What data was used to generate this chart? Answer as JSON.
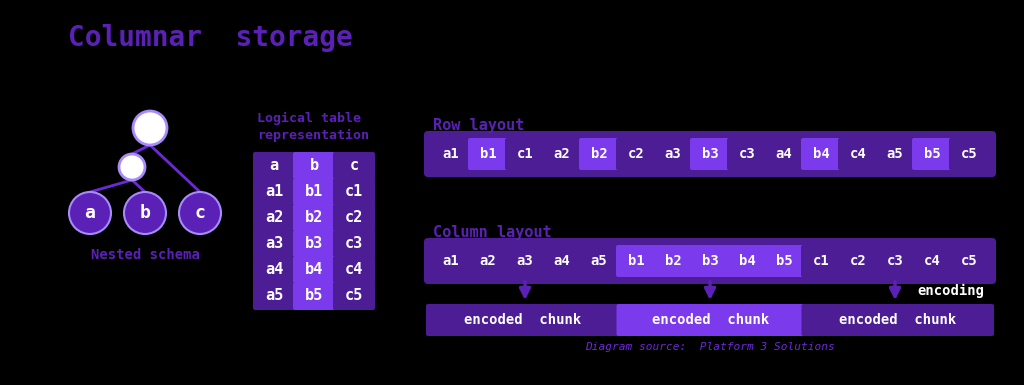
{
  "title": "Columnar  storage",
  "title_color": "#5b21b6",
  "bg_color": "#000000",
  "font_color": "#ffffff",
  "purple_dark": "#4c1d95",
  "purple_mid": "#6d28d9",
  "purple_light": "#a78bfa",
  "purple_bright": "#5b21b6",
  "purple_header_b": "#7c3aed",
  "nested_label": "Nested schema",
  "logical_label": "Logical table\nrepresentation",
  "row_layout_label": "Row layout",
  "col_layout_label": "Column layout",
  "encoding_label": "encoding",
  "source_label": "Diagram source:  Platform 3 Solutions",
  "table_header": [
    "a",
    "b",
    "c"
  ],
  "table_rows": [
    [
      "a1",
      "b1",
      "c1"
    ],
    [
      "a2",
      "b2",
      "c2"
    ],
    [
      "a3",
      "b3",
      "c3"
    ],
    [
      "a4",
      "b4",
      "c4"
    ],
    [
      "a5",
      "b5",
      "c5"
    ]
  ],
  "row_cells": [
    "a1",
    "b1",
    "c1",
    "a2",
    "b2",
    "c2",
    "a3",
    "b3",
    "c3",
    "a4",
    "b4",
    "c4",
    "a5",
    "b5",
    "c5"
  ],
  "row_colors": [
    "#4c1d95",
    "#7c3aed",
    "#4c1d95",
    "#4c1d95",
    "#7c3aed",
    "#4c1d95",
    "#4c1d95",
    "#7c3aed",
    "#4c1d95",
    "#4c1d95",
    "#7c3aed",
    "#4c1d95",
    "#4c1d95",
    "#7c3aed",
    "#4c1d95"
  ],
  "col_cells": [
    "a1",
    "a2",
    "a3",
    "a4",
    "a5",
    "b1",
    "b2",
    "b3",
    "b4",
    "b5",
    "c1",
    "c2",
    "c3",
    "c4",
    "c5"
  ],
  "col_colors": [
    "#4c1d95",
    "#4c1d95",
    "#4c1d95",
    "#4c1d95",
    "#4c1d95",
    "#7c3aed",
    "#7c3aed",
    "#7c3aed",
    "#7c3aed",
    "#7c3aed",
    "#4c1d95",
    "#4c1d95",
    "#4c1d95",
    "#4c1d95",
    "#4c1d95"
  ],
  "encoded_chunks": [
    "encoded  chunk",
    "encoded  chunk",
    "encoded  chunk"
  ],
  "chunk_colors": [
    "#4c1d95",
    "#7c3aed",
    "#4c1d95"
  ]
}
